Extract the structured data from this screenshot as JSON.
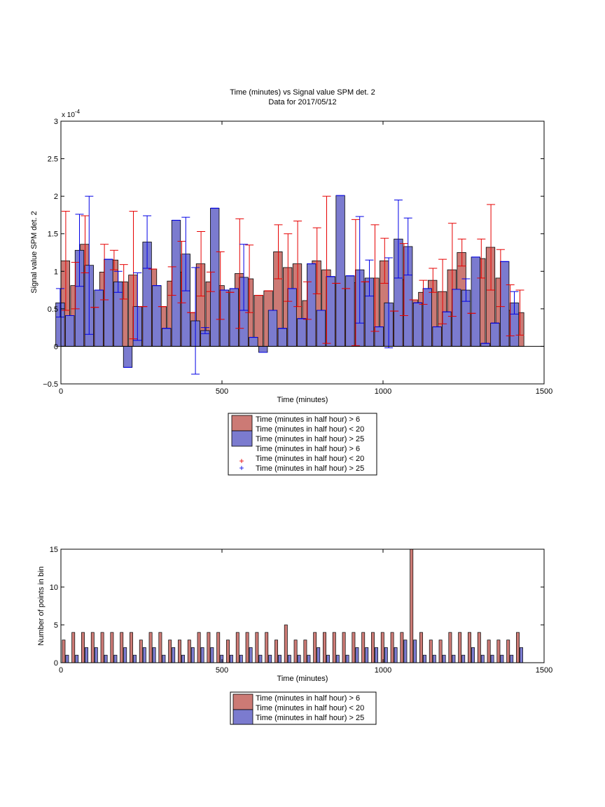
{
  "colors": {
    "red_fill": "#cc7a75",
    "blue_fill": "#7b7bcf",
    "red_line": "#e60000",
    "blue_line": "#0000e6",
    "axis": "#000000"
  },
  "chart_data": [
    {
      "type": "bar",
      "title": "Time (minutes) vs Signal value SPM det. 2",
      "subtitle": "Data for 2017/05/12",
      "xlabel": "Time (minutes)",
      "ylabel": "Signal value SPM det. 2",
      "xlim": [
        0,
        1500
      ],
      "ylim": [
        -0.5,
        3
      ],
      "y_exponent_label": "x 10",
      "y_exponent_power": "-4",
      "xticks": [
        "0",
        "500",
        "1000",
        "1500"
      ],
      "yticks": [
        "−0.5",
        "0",
        "0.5",
        "1",
        "1.5",
        "2",
        "2.5",
        "3"
      ],
      "legend_position": "below-center",
      "legend": [
        "Time (minutes in half hour) > 6",
        "Time (minutes in half hour) < 20",
        "Time (minutes in half hour) > 25",
        "Time (minutes in half hour) > 6",
        "Time (minutes in half hour) < 20",
        "Time (minutes in half hour) > 25"
      ],
      "series": [
        {
          "x": [
            15,
            45,
            75,
            105,
            135,
            165,
            195,
            225,
            255,
            285,
            315,
            345,
            375,
            405,
            435,
            465,
            495,
            525,
            555,
            585,
            615,
            645,
            675,
            705,
            735,
            765,
            795,
            825,
            855,
            885,
            915,
            945,
            975,
            1005,
            1035,
            1065,
            1095,
            1125,
            1155,
            1185,
            1215,
            1245,
            1275,
            1305,
            1335,
            1365,
            1395,
            1425
          ],
          "values": [
            1.14,
            0.81,
            1.36,
            0.52,
            0.99,
            1.15,
            0.86,
            0.95,
            0.53,
            1.03,
            0.53,
            0.87,
            0.99,
            0.45,
            1.1,
            0.86,
            0.81,
            0.72,
            0.97,
            0.9,
            0.68,
            0.74,
            1.26,
            1.05,
            1.1,
            0.61,
            1.14,
            1.02,
            0.84,
            0.77,
            0.85,
            0.86,
            0.91,
            1.14,
            0.47,
            0.89,
            0.62,
            0.72,
            0.88,
            0.73,
            1.02,
            1.25,
            0.44,
            1.17,
            1.32,
            0.91,
            0.48,
            0.45
          ],
          "error": [
            0.66,
            0.31,
            0.38,
            0.0,
            0.37,
            0.13,
            0.23,
            0.85,
            0.0,
            0.0,
            0.0,
            0.19,
            0.41,
            0.0,
            0.43,
            0.13,
            0.45,
            0.0,
            0.73,
            0.45,
            0.0,
            0.0,
            0.36,
            0.45,
            0.57,
            0.25,
            0.44,
            0.98,
            0.0,
            0.0,
            0.84,
            0.0,
            0.71,
            0.3,
            0.0,
            0.48,
            0.0,
            0.16,
            0.16,
            0.43,
            0.62,
            0.18,
            0.0,
            0.26,
            0.57,
            0.38,
            0.34,
            0.3
          ]
        },
        {
          "x": [
            15,
            45,
            75,
            105,
            135,
            165,
            195,
            225,
            255,
            285,
            315,
            345,
            375,
            405,
            435,
            465,
            495,
            525,
            555,
            585,
            615,
            645,
            675,
            705,
            735,
            765,
            795,
            825,
            855,
            885,
            915,
            945,
            975,
            1005,
            1035,
            1065,
            1095,
            1125,
            1155,
            1185,
            1215,
            1245,
            1275,
            1305,
            1335,
            1365,
            1395,
            1425
          ],
          "values": [
            0.58,
            0.41,
            1.28,
            1.08,
            0.75,
            1.16,
            0.86,
            -0.28,
            0.53,
            1.39,
            0.81,
            0.24,
            1.68,
            1.23,
            0.34,
            0.21,
            1.84,
            0.75,
            0.77,
            0.92,
            0.12,
            -0.08,
            0.48,
            0.24,
            0.77,
            0.37,
            1.1,
            0.48,
            0.93,
            2.01,
            0.94,
            1.02,
            0.91,
            0.26,
            0.58,
            1.43,
            1.33,
            0.58,
            0.77,
            0.26,
            0.46,
            0.76,
            0.75,
            1.19,
            0.04,
            0.31,
            1.13,
            0.58
          ]
        }
      ],
      "series_x_unit": "minutes"
    },
    {
      "type": "bar",
      "xlabel": "Time (minutes)",
      "ylabel": "Number of points in bin",
      "xlim": [
        0,
        1500
      ],
      "ylim": [
        0,
        15
      ],
      "xticks": [
        "0",
        "500",
        "1000",
        "1500"
      ],
      "yticks": [
        "0",
        "5",
        "10",
        "15"
      ],
      "legend_position": "below-center",
      "legend": [
        "Time (minutes in half hour) > 6",
        "Time (minutes in half hour) < 20",
        "Time (minutes in half hour) > 25"
      ],
      "series": [
        {
          "x": [
            15,
            45,
            75,
            105,
            135,
            165,
            195,
            225,
            255,
            285,
            315,
            345,
            375,
            405,
            435,
            465,
            495,
            525,
            555,
            585,
            615,
            645,
            675,
            705,
            735,
            765,
            795,
            825,
            855,
            885,
            915,
            945,
            975,
            1005,
            1035,
            1065,
            1095,
            1125,
            1155,
            1185,
            1215,
            1245,
            1275,
            1305,
            1335,
            1365,
            1395,
            1425
          ],
          "values": [
            3,
            4,
            4,
            4,
            4,
            4,
            4,
            4,
            3,
            4,
            4,
            3,
            3,
            3,
            4,
            4,
            4,
            3,
            4,
            4,
            4,
            4,
            3,
            5,
            3,
            3,
            4,
            4,
            4,
            4,
            4,
            4,
            4,
            4,
            4,
            4,
            15,
            4,
            3,
            3,
            4,
            4,
            4,
            4,
            3,
            3,
            3,
            4
          ]
        },
        {
          "x": [
            15,
            45,
            75,
            105,
            135,
            165,
            195,
            225,
            255,
            285,
            315,
            345,
            375,
            405,
            435,
            465,
            495,
            525,
            555,
            585,
            615,
            645,
            675,
            705,
            735,
            765,
            795,
            825,
            855,
            885,
            915,
            945,
            975,
            1005,
            1035,
            1065,
            1095,
            1125,
            1155,
            1185,
            1215,
            1245,
            1275,
            1305,
            1335,
            1365,
            1395,
            1425
          ],
          "values": [
            1,
            1,
            2,
            2,
            1,
            1,
            2,
            1,
            2,
            2,
            1,
            2,
            1,
            2,
            2,
            2,
            1,
            1,
            1,
            2,
            1,
            1,
            1,
            1,
            1,
            1,
            2,
            1,
            1,
            1,
            2,
            2,
            2,
            2,
            2,
            3,
            3,
            1,
            1,
            1,
            1,
            1,
            2,
            1,
            1,
            1,
            1,
            2
          ]
        }
      ]
    }
  ]
}
